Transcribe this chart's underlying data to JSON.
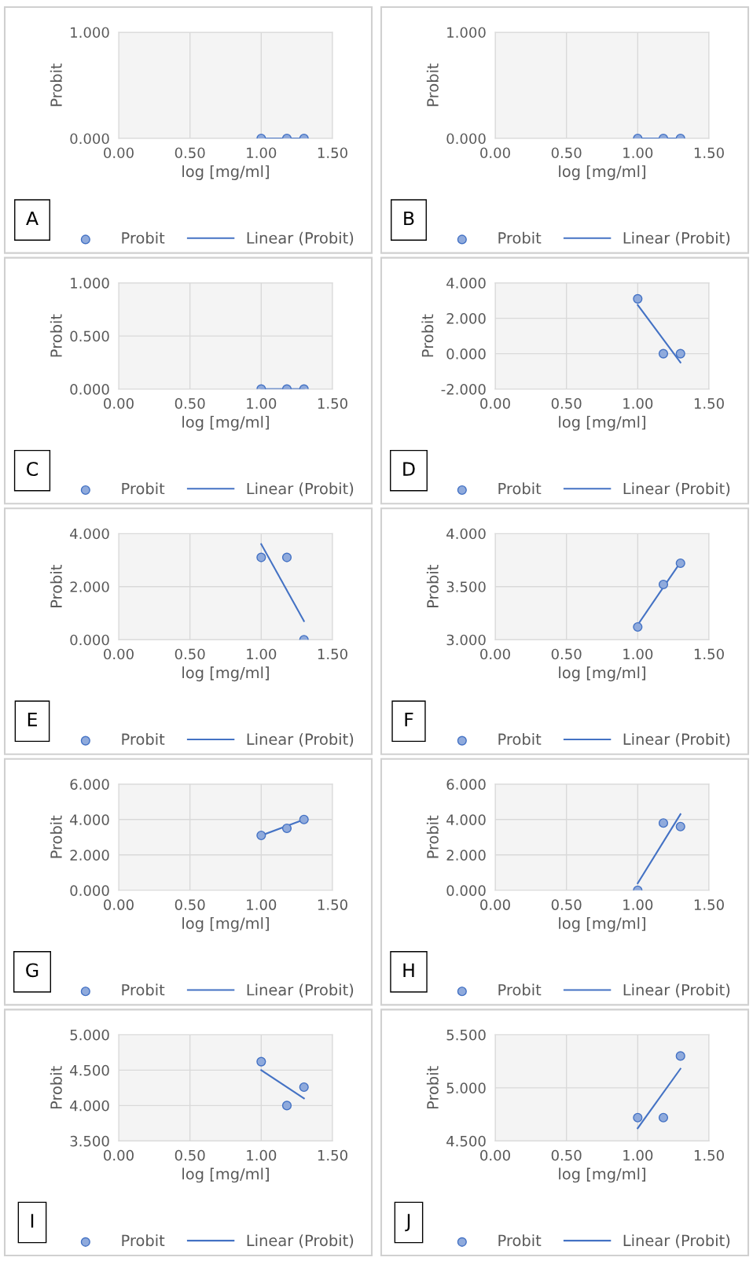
{
  "chart_data": [
    {
      "type": "scatter",
      "xlabel": "log [mg/ml]",
      "ylabel": "Probit",
      "annotations": [
        "A"
      ],
      "xlim": [
        0,
        1.5
      ],
      "xticks": [
        {
          "value": 0,
          "label": "0.00"
        },
        {
          "value": 0.5,
          "label": "0.50"
        },
        {
          "value": 1,
          "label": "1.00"
        },
        {
          "value": 1.5,
          "label": "1.50"
        }
      ],
      "ylim": [
        0,
        1
      ],
      "yticks": [
        {
          "value": 0,
          "label": "0.000"
        },
        {
          "value": 1,
          "label": "1.000"
        }
      ],
      "grid": true,
      "legend": "bottom",
      "series": [
        {
          "name": "Probit",
          "type": "scatter",
          "marker": "circle",
          "color": "#8faadc",
          "x": [
            1.0,
            1.18,
            1.3
          ],
          "values": [
            0,
            0,
            0
          ]
        },
        {
          "name": "Linear (Probit)",
          "type": "line",
          "line_style": "solid",
          "color": "#4472c4",
          "x": [
            1.0,
            1.3
          ],
          "values": [
            0,
            0
          ]
        }
      ]
    },
    {
      "type": "scatter",
      "xlabel": "log [mg/ml]",
      "ylabel": "Probit",
      "annotations": [
        "B"
      ],
      "xlim": [
        0,
        1.5
      ],
      "xticks": [
        {
          "value": 0,
          "label": "0.00"
        },
        {
          "value": 0.5,
          "label": "0.50"
        },
        {
          "value": 1,
          "label": "1.00"
        },
        {
          "value": 1.5,
          "label": "1.50"
        }
      ],
      "ylim": [
        0,
        1
      ],
      "yticks": [
        {
          "value": 0,
          "label": "0.000"
        },
        {
          "value": 1,
          "label": "1.000"
        }
      ],
      "grid": true,
      "legend": "bottom",
      "series": [
        {
          "name": "Probit",
          "type": "scatter",
          "marker": "circle",
          "color": "#8faadc",
          "x": [
            1.0,
            1.18,
            1.3
          ],
          "values": [
            0,
            0,
            0
          ]
        },
        {
          "name": "Linear (Probit)",
          "type": "line",
          "line_style": "solid",
          "color": "#4472c4",
          "x": [
            1.0,
            1.3
          ],
          "values": [
            0,
            0
          ]
        }
      ]
    },
    {
      "type": "scatter",
      "xlabel": "log [mg/ml]",
      "ylabel": "Probit",
      "annotations": [
        "C"
      ],
      "xlim": [
        0,
        1.5
      ],
      "xticks": [
        {
          "value": 0,
          "label": "0.00"
        },
        {
          "value": 0.5,
          "label": "0.50"
        },
        {
          "value": 1,
          "label": "1.00"
        },
        {
          "value": 1.5,
          "label": "1.50"
        }
      ],
      "ylim": [
        0,
        1
      ],
      "yticks": [
        {
          "value": 0,
          "label": "0.000"
        },
        {
          "value": 0.5,
          "label": "0.500"
        },
        {
          "value": 1,
          "label": "1.000"
        }
      ],
      "grid": true,
      "legend": "bottom",
      "series": [
        {
          "name": "Probit",
          "type": "scatter",
          "marker": "circle",
          "color": "#8faadc",
          "x": [
            1.0,
            1.18,
            1.3
          ],
          "values": [
            0,
            0,
            0
          ]
        },
        {
          "name": "Linear (Probit)",
          "type": "line",
          "line_style": "solid",
          "color": "#4472c4",
          "x": [
            1.0,
            1.3
          ],
          "values": [
            0,
            0
          ]
        }
      ]
    },
    {
      "type": "scatter",
      "xlabel": "log [mg/ml]",
      "ylabel": "Probit",
      "annotations": [
        "D"
      ],
      "xlim": [
        0,
        1.5
      ],
      "xticks": [
        {
          "value": 0,
          "label": "0.00"
        },
        {
          "value": 0.5,
          "label": "0.50"
        },
        {
          "value": 1,
          "label": "1.00"
        },
        {
          "value": 1.5,
          "label": "1.50"
        }
      ],
      "ylim": [
        -2,
        4
      ],
      "yticks": [
        {
          "value": -2,
          "label": "-2.000"
        },
        {
          "value": 0,
          "label": "0.000"
        },
        {
          "value": 2,
          "label": "2.000"
        },
        {
          "value": 4,
          "label": "4.000"
        }
      ],
      "grid": true,
      "legend": "bottom",
      "series": [
        {
          "name": "Probit",
          "type": "scatter",
          "marker": "circle",
          "color": "#8faadc",
          "x": [
            1.0,
            1.18,
            1.3
          ],
          "values": [
            3.1,
            0,
            0
          ]
        },
        {
          "name": "Linear (Probit)",
          "type": "line",
          "line_style": "solid",
          "color": "#4472c4",
          "x": [
            1.0,
            1.3
          ],
          "values": [
            2.75,
            -0.5
          ]
        }
      ]
    },
    {
      "type": "scatter",
      "xlabel": "log [mg/ml]",
      "ylabel": "Probit",
      "annotations": [
        "E"
      ],
      "xlim": [
        0,
        1.5
      ],
      "xticks": [
        {
          "value": 0,
          "label": "0.00"
        },
        {
          "value": 0.5,
          "label": "0.50"
        },
        {
          "value": 1,
          "label": "1.00"
        },
        {
          "value": 1.5,
          "label": "1.50"
        }
      ],
      "ylim": [
        0,
        4
      ],
      "yticks": [
        {
          "value": 0,
          "label": "0.000"
        },
        {
          "value": 2,
          "label": "2.000"
        },
        {
          "value": 4,
          "label": "4.000"
        }
      ],
      "grid": true,
      "legend": "bottom",
      "series": [
        {
          "name": "Probit",
          "type": "scatter",
          "marker": "circle",
          "color": "#8faadc",
          "x": [
            1.0,
            1.18,
            1.3
          ],
          "values": [
            3.1,
            3.1,
            0
          ]
        },
        {
          "name": "Linear (Probit)",
          "type": "line",
          "line_style": "solid",
          "color": "#4472c4",
          "x": [
            1.0,
            1.3
          ],
          "values": [
            3.6,
            0.7
          ]
        }
      ]
    },
    {
      "type": "scatter",
      "xlabel": "log [mg/ml]",
      "ylabel": "Probit",
      "annotations": [
        "F"
      ],
      "xlim": [
        0,
        1.5
      ],
      "xticks": [
        {
          "value": 0,
          "label": "0.00"
        },
        {
          "value": 0.5,
          "label": "0.50"
        },
        {
          "value": 1,
          "label": "1.00"
        },
        {
          "value": 1.5,
          "label": "1.50"
        }
      ],
      "ylim": [
        3,
        4
      ],
      "yticks": [
        {
          "value": 3,
          "label": "3.000"
        },
        {
          "value": 3.5,
          "label": "3.500"
        },
        {
          "value": 4,
          "label": "4.000"
        }
      ],
      "grid": true,
      "legend": "bottom",
      "series": [
        {
          "name": "Probit",
          "type": "scatter",
          "marker": "circle",
          "color": "#8faadc",
          "x": [
            1.0,
            1.18,
            1.3
          ],
          "values": [
            3.12,
            3.52,
            3.72
          ]
        },
        {
          "name": "Linear (Probit)",
          "type": "line",
          "line_style": "solid",
          "color": "#4472c4",
          "x": [
            1.0,
            1.3
          ],
          "values": [
            3.14,
            3.73
          ]
        }
      ]
    },
    {
      "type": "scatter",
      "xlabel": "log [mg/ml]",
      "ylabel": "Probit",
      "annotations": [
        "G"
      ],
      "xlim": [
        0,
        1.5
      ],
      "xticks": [
        {
          "value": 0,
          "label": "0.00"
        },
        {
          "value": 0.5,
          "label": "0.50"
        },
        {
          "value": 1,
          "label": "1.00"
        },
        {
          "value": 1.5,
          "label": "1.50"
        }
      ],
      "ylim": [
        0,
        6
      ],
      "yticks": [
        {
          "value": 0,
          "label": "0.000"
        },
        {
          "value": 2,
          "label": "2.000"
        },
        {
          "value": 4,
          "label": "4.000"
        },
        {
          "value": 6,
          "label": "6.000"
        }
      ],
      "grid": true,
      "legend": "bottom",
      "series": [
        {
          "name": "Probit",
          "type": "scatter",
          "marker": "circle",
          "color": "#8faadc",
          "x": [
            1.0,
            1.18,
            1.3
          ],
          "values": [
            3.1,
            3.5,
            4.0
          ]
        },
        {
          "name": "Linear (Probit)",
          "type": "line",
          "line_style": "solid",
          "color": "#4472c4",
          "x": [
            1.0,
            1.3
          ],
          "values": [
            3.1,
            4.0
          ]
        }
      ]
    },
    {
      "type": "scatter",
      "xlabel": "log [mg/ml]",
      "ylabel": "Probit",
      "annotations": [
        "H"
      ],
      "xlim": [
        0,
        1.5
      ],
      "xticks": [
        {
          "value": 0,
          "label": "0.00"
        },
        {
          "value": 0.5,
          "label": "0.50"
        },
        {
          "value": 1,
          "label": "1.00"
        },
        {
          "value": 1.5,
          "label": "1.50"
        }
      ],
      "ylim": [
        0,
        6
      ],
      "yticks": [
        {
          "value": 0,
          "label": "0.000"
        },
        {
          "value": 2,
          "label": "2.000"
        },
        {
          "value": 4,
          "label": "4.000"
        },
        {
          "value": 6,
          "label": "6.000"
        }
      ],
      "grid": true,
      "legend": "bottom",
      "series": [
        {
          "name": "Probit",
          "type": "scatter",
          "marker": "circle",
          "color": "#8faadc",
          "x": [
            1.0,
            1.18,
            1.3
          ],
          "values": [
            0,
            3.8,
            3.6
          ]
        },
        {
          "name": "Linear (Probit)",
          "type": "line",
          "line_style": "solid",
          "color": "#4472c4",
          "x": [
            1.0,
            1.3
          ],
          "values": [
            0.4,
            4.3
          ]
        }
      ]
    },
    {
      "type": "scatter",
      "xlabel": "log [mg/ml]",
      "ylabel": "Probit",
      "annotations": [
        "I"
      ],
      "xlim": [
        0,
        1.5
      ],
      "xticks": [
        {
          "value": 0,
          "label": "0.00"
        },
        {
          "value": 0.5,
          "label": "0.50"
        },
        {
          "value": 1,
          "label": "1.00"
        },
        {
          "value": 1.5,
          "label": "1.50"
        }
      ],
      "ylim": [
        3.5,
        5
      ],
      "yticks": [
        {
          "value": 3.5,
          "label": "3.500"
        },
        {
          "value": 4,
          "label": "4.000"
        },
        {
          "value": 4.5,
          "label": "4.500"
        },
        {
          "value": 5,
          "label": "5.000"
        }
      ],
      "grid": true,
      "legend": "bottom",
      "series": [
        {
          "name": "Probit",
          "type": "scatter",
          "marker": "circle",
          "color": "#8faadc",
          "x": [
            1.0,
            1.18,
            1.3
          ],
          "values": [
            4.62,
            4.0,
            4.26
          ]
        },
        {
          "name": "Linear (Probit)",
          "type": "line",
          "line_style": "solid",
          "color": "#4472c4",
          "x": [
            1.0,
            1.3
          ],
          "values": [
            4.5,
            4.1
          ]
        }
      ]
    },
    {
      "type": "scatter",
      "xlabel": "log [mg/ml]",
      "ylabel": "Probit",
      "annotations": [
        "J"
      ],
      "xlim": [
        0,
        1.5
      ],
      "xticks": [
        {
          "value": 0,
          "label": "0.00"
        },
        {
          "value": 0.5,
          "label": "0.50"
        },
        {
          "value": 1,
          "label": "1.00"
        },
        {
          "value": 1.5,
          "label": "1.50"
        }
      ],
      "ylim": [
        4.5,
        5.5
      ],
      "yticks": [
        {
          "value": 4.5,
          "label": "4.500"
        },
        {
          "value": 5,
          "label": "5.000"
        },
        {
          "value": 5.5,
          "label": "5.500"
        }
      ],
      "grid": true,
      "legend": "bottom",
      "series": [
        {
          "name": "Probit",
          "type": "scatter",
          "marker": "circle",
          "color": "#8faadc",
          "x": [
            1.0,
            1.18,
            1.3
          ],
          "values": [
            4.72,
            4.72,
            5.3
          ]
        },
        {
          "name": "Linear (Probit)",
          "type": "line",
          "line_style": "solid",
          "color": "#4472c4",
          "x": [
            1.0,
            1.3
          ],
          "values": [
            4.62,
            5.18
          ]
        }
      ]
    }
  ]
}
